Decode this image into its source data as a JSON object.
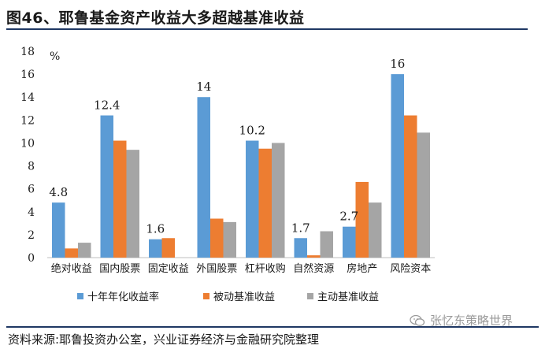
{
  "title": "图46、耶鲁基金资产收益大多超越基准收益",
  "source": "资料来源:耶鲁投资办公室，兴业证券经济与金融研究院整理",
  "watermark": "张忆东策略世界",
  "chart_data": {
    "type": "bar",
    "title": "图46、耶鲁基金资产收益大多超越基准收益",
    "ylabel": "%",
    "xlabel": "",
    "ylim": [
      0,
      18
    ],
    "yticks": [
      0,
      2,
      4,
      6,
      8,
      10,
      12,
      14,
      16,
      18
    ],
    "grid": false,
    "legend_position": "bottom",
    "categories": [
      "绝对收益",
      "国内股票",
      "固定收益",
      "外国股票",
      "杠杆收购",
      "自然资源",
      "房地产",
      "风险资本"
    ],
    "series": [
      {
        "name": "十年年化收益率",
        "color": "#5b9bd5",
        "values": [
          4.8,
          12.4,
          1.6,
          14,
          10.2,
          1.7,
          2.7,
          16
        ],
        "labels": [
          "4.8",
          "12.4",
          "1.6",
          "14",
          "10.2",
          "1.7",
          "2.7",
          "16"
        ]
      },
      {
        "name": "被动基准收益",
        "color": "#ed7d31",
        "values": [
          0.8,
          10.2,
          1.7,
          3.4,
          9.5,
          0.2,
          6.6,
          12.4
        ]
      },
      {
        "name": "主动基准收益",
        "color": "#a5a5a5",
        "values": [
          1.3,
          9.4,
          0,
          3.1,
          10.0,
          2.3,
          4.8,
          10.9
        ]
      }
    ]
  }
}
